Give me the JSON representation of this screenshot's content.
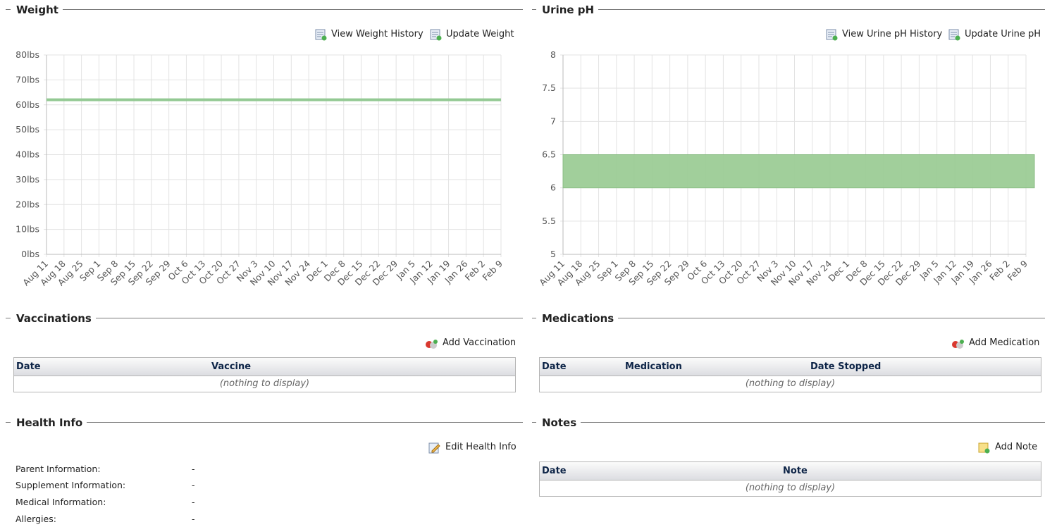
{
  "weight": {
    "title": "Weight",
    "actions": [
      "View Weight History",
      "Update Weight"
    ]
  },
  "urine_ph": {
    "title": "Urine pH",
    "actions": [
      "View Urine pH History",
      "Update Urine pH"
    ]
  },
  "chart_data": [
    {
      "type": "line",
      "categories": [
        "Aug 11",
        "Aug 18",
        "Aug 25",
        "Sep 1",
        "Sep 8",
        "Sep 15",
        "Sep 22",
        "Sep 29",
        "Oct 6",
        "Oct 13",
        "Oct 20",
        "Oct 27",
        "Nov 3",
        "Nov 10",
        "Nov 17",
        "Nov 24",
        "Dec 1",
        "Dec 8",
        "Dec 15",
        "Dec 22",
        "Dec 29",
        "Jan 5",
        "Jan 12",
        "Jan 19",
        "Jan 26",
        "Feb 2",
        "Feb 9"
      ],
      "values": [
        62,
        62,
        62,
        62,
        62,
        62,
        62,
        62,
        62,
        62,
        62,
        62,
        62,
        62,
        62,
        62,
        62,
        62,
        62,
        62,
        62,
        62,
        62,
        62,
        62,
        62,
        62
      ],
      "color": "#93c993",
      "ylim": [
        0,
        80
      ],
      "yticks": [
        {
          "value": 0,
          "label": "0lbs"
        },
        {
          "value": 10,
          "label": "10lbs"
        },
        {
          "value": 20,
          "label": "20lbs"
        },
        {
          "value": 30,
          "label": "30lbs"
        },
        {
          "value": 40,
          "label": "40lbs"
        },
        {
          "value": 50,
          "label": "50lbs"
        },
        {
          "value": 60,
          "label": "60lbs"
        },
        {
          "value": 70,
          "label": "70lbs"
        },
        {
          "value": 80,
          "label": "80lbs"
        }
      ],
      "grid": true
    },
    {
      "type": "range",
      "categories": [
        "Aug 11",
        "Aug 18",
        "Aug 25",
        "Sep 1",
        "Sep 8",
        "Sep 15",
        "Sep 22",
        "Sep 29",
        "Oct 6",
        "Oct 13",
        "Oct 20",
        "Oct 27",
        "Nov 3",
        "Nov 10",
        "Nov 17",
        "Nov 24",
        "Dec 1",
        "Dec 8",
        "Dec 15",
        "Dec 22",
        "Dec 29",
        "Jan 5",
        "Jan 12",
        "Jan 19",
        "Jan 26",
        "Feb 2",
        "Feb 9"
      ],
      "low": 6,
      "high": 6.5,
      "color": "#9ccc96",
      "ylim": [
        5,
        8
      ],
      "yticks": [
        5,
        5.5,
        6,
        6.5,
        7,
        7.5,
        8
      ],
      "grid": true
    }
  ],
  "vaccinations": {
    "title": "Vaccinations",
    "action": "Add Vaccination",
    "columns": [
      "Date",
      "Vaccine"
    ],
    "empty": "(nothing to display)"
  },
  "medications": {
    "title": "Medications",
    "action": "Add Medication",
    "columns": [
      "Date",
      "Medication",
      "Date Stopped"
    ],
    "empty": "(nothing to display)"
  },
  "health_info": {
    "title": "Health Info",
    "action": "Edit Health Info",
    "rows": [
      [
        "Parent Information:",
        "-"
      ],
      [
        "Supplement Information:",
        "-"
      ],
      [
        "Medical Information:",
        "-"
      ],
      [
        "Allergies:",
        "-"
      ]
    ]
  },
  "notes": {
    "title": "Notes",
    "action": "Add Note",
    "columns": [
      "Date",
      "Note"
    ],
    "empty": "(nothing to display)"
  }
}
